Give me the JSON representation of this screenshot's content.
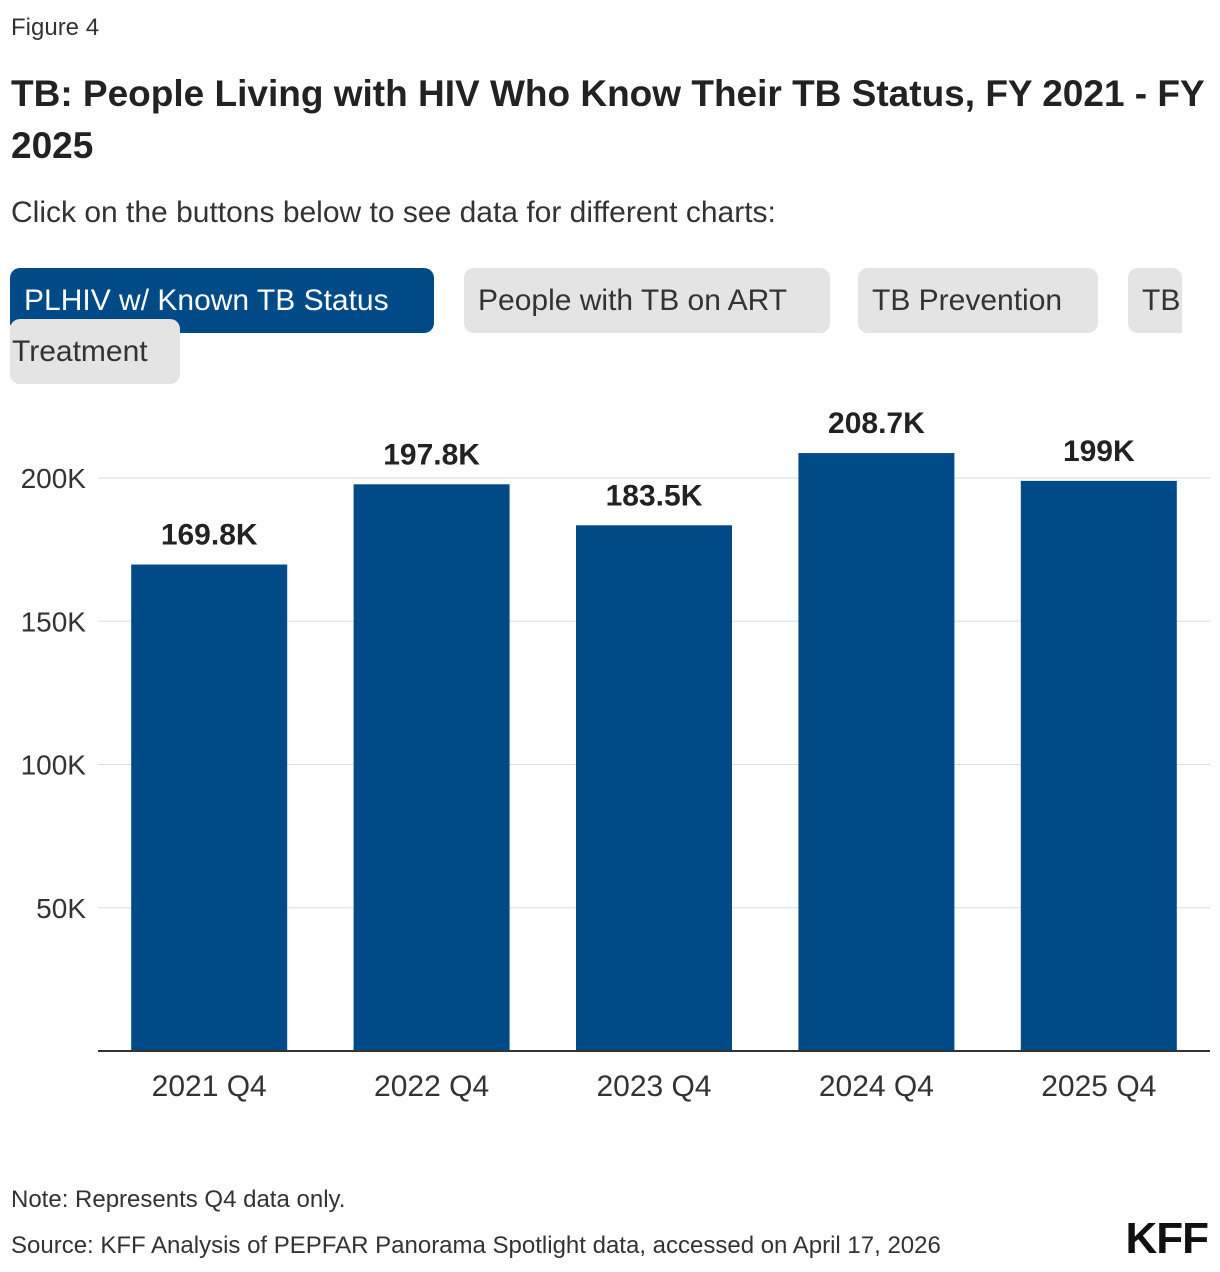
{
  "figure_label": "Figure 4",
  "title": "TB: People Living with HIV Who Know Their TB Status, FY 2021 - FY 2025",
  "subtitle": "Click on the buttons below to see data for different charts:",
  "buttons": [
    {
      "label": "PLHIV w/ Known TB Status",
      "active": true
    },
    {
      "label": "People with TB on ART",
      "active": false
    },
    {
      "label": "TB Prevention",
      "active": false
    },
    {
      "label_line1": "TB",
      "label_line2": "Treatment",
      "active": false
    }
  ],
  "colors": {
    "bar": "#004a88",
    "active_button": "#004a88",
    "inactive_button": "#e4e4e4",
    "grid": "#dddddd",
    "axis": "#333333"
  },
  "chart_data": {
    "type": "bar",
    "categories": [
      "2021 Q4",
      "2022 Q4",
      "2023 Q4",
      "2024 Q4",
      "2025 Q4"
    ],
    "values": [
      169800,
      197800,
      183500,
      208700,
      199000
    ],
    "data_labels": [
      "169.8K",
      "197.8K",
      "183.5K",
      "208.7K",
      "199K"
    ],
    "y_ticks": [
      50000,
      100000,
      150000,
      200000
    ],
    "y_tick_labels": [
      "50K",
      "100K",
      "150K",
      "200K"
    ],
    "ylim": [
      0,
      200000
    ],
    "grid": true,
    "legend": false
  },
  "note": "Note: Represents Q4 data only.",
  "source": "Source: KFF Analysis of PEPFAR Panorama Spotlight data, accessed on April 17, 2026",
  "logo_text": "KFF"
}
